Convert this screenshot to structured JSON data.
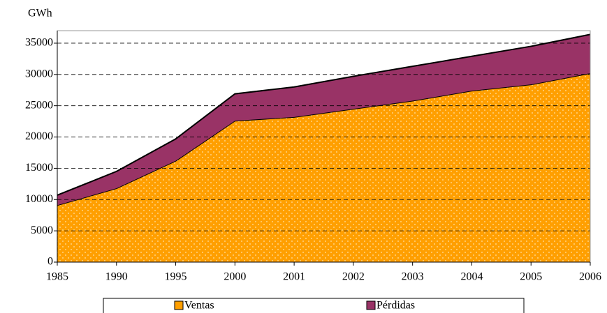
{
  "chart_data": {
    "type": "stacked-area",
    "y_label": "GWh",
    "categories": [
      "1985",
      "1990",
      "1995",
      "2000",
      "2001",
      "2002",
      "2003",
      "2004",
      "2005",
      "2006"
    ],
    "series": [
      {
        "name": "Ventas",
        "color": "#ff9f00",
        "values": [
          9100,
          11800,
          16200,
          22600,
          23200,
          24500,
          25800,
          27400,
          28400,
          30200
        ]
      },
      {
        "name": "Pérdidas",
        "color": "#993366",
        "values": [
          1600,
          2700,
          3500,
          4300,
          4800,
          5200,
          5500,
          5500,
          6100,
          6200
        ]
      }
    ],
    "ylim": [
      0,
      37000
    ],
    "yticks": [
      0,
      5000,
      10000,
      15000,
      20000,
      25000,
      30000,
      35000
    ],
    "grid": true,
    "legend": "bottom"
  }
}
